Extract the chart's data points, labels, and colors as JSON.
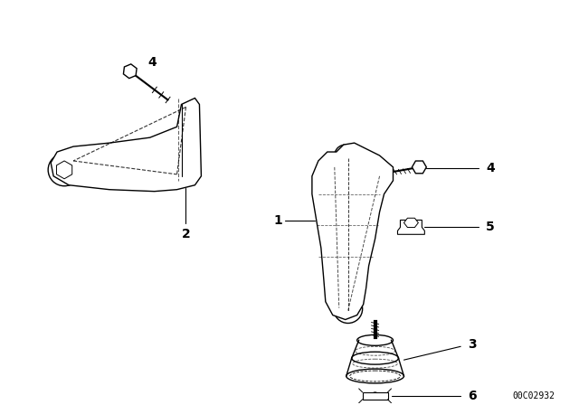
{
  "background_color": "#ffffff",
  "diagram_id": "00C02932",
  "text_color": "#000000",
  "line_color": "#000000",
  "label_fontsize": 10,
  "id_fontsize": 7,
  "lw": 1.0
}
